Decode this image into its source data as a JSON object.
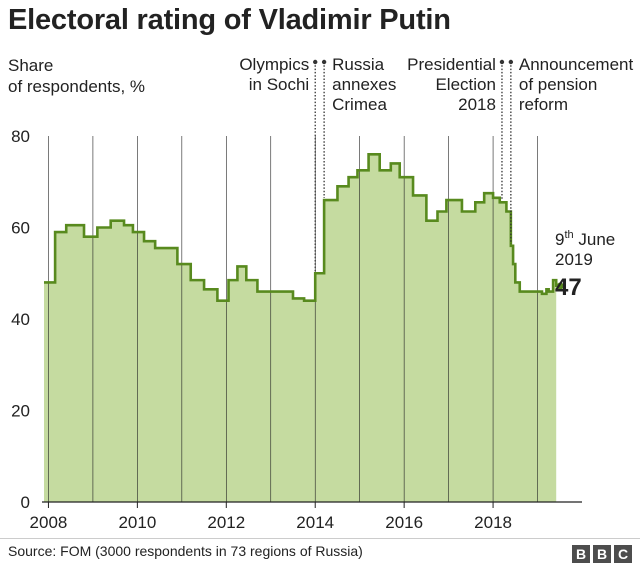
{
  "title": "Electoral rating of Vladimir Putin",
  "subtitle": "Share\nof respondents, %",
  "source": "Source: FOM (3000 respondents in 73 regions of Russia)",
  "logo": [
    "B",
    "B",
    "C"
  ],
  "colors": {
    "line": "#588a1e",
    "fill": "#c5dba0",
    "grid": "#222222",
    "text": "#222222"
  },
  "chart_data": {
    "type": "area",
    "title": "Electoral rating of Vladimir Putin",
    "ylabel": "Share of respondents, %",
    "ylim": [
      0,
      80
    ],
    "xlim": [
      2007.9,
      2020.0
    ],
    "yticks": [
      0,
      20,
      40,
      60,
      80
    ],
    "xticks": [
      2008,
      2010,
      2012,
      2014,
      2016,
      2018
    ],
    "grid": {
      "vertical": true,
      "horizontal": false
    },
    "series": [
      {
        "step": true,
        "x": [
          2007.9,
          2008.15,
          2008.4,
          2008.8,
          2009.1,
          2009.4,
          2009.7,
          2009.9,
          2010.15,
          2010.4,
          2010.9,
          2011.2,
          2011.5,
          2011.8,
          2012.05,
          2012.25,
          2012.45,
          2012.7,
          2013.2,
          2013.5,
          2013.75,
          2014.0,
          2014.2,
          2014.5,
          2014.75,
          2014.95,
          2015.2,
          2015.45,
          2015.7,
          2015.9,
          2016.2,
          2016.5,
          2016.75,
          2016.95,
          2017.3,
          2017.6,
          2017.8,
          2018.0,
          2018.15,
          2018.3,
          2018.4,
          2018.45,
          2018.5,
          2018.6,
          2018.9,
          2019.1,
          2019.2,
          2019.25,
          2019.35,
          2019.42
        ],
        "values": [
          48,
          59,
          60.5,
          58,
          60,
          61.5,
          60.5,
          59,
          57,
          55.5,
          52,
          48.5,
          46.5,
          44,
          48.5,
          51.5,
          48.5,
          46,
          46,
          44.5,
          44,
          50,
          66,
          69,
          71,
          72.5,
          76,
          72.5,
          74,
          71,
          67,
          61.5,
          63.5,
          66,
          63.5,
          65.5,
          67.5,
          66.5,
          65.5,
          63.5,
          56,
          52,
          48,
          46,
          46,
          45.5,
          46.5,
          46,
          48.5,
          47
        ]
      }
    ],
    "annotations": [
      {
        "x": 2014.0,
        "text": "Olympics\nin Sochi",
        "side": "left"
      },
      {
        "x": 2014.2,
        "text": "Russia\nannexes\nCrimea",
        "side": "right"
      },
      {
        "x": 2018.2,
        "text": "Presidential\nElection\n2018",
        "side": "left"
      },
      {
        "x": 2018.4,
        "text": "Announcement\nof pension\nreform",
        "side": "right"
      }
    ],
    "last_point": {
      "x": 2019.42,
      "value": 47,
      "label_value": "47",
      "label_date_day": "9",
      "label_date_suffix": "th",
      "label_date_rest": " June",
      "label_date_year": "2019"
    }
  }
}
